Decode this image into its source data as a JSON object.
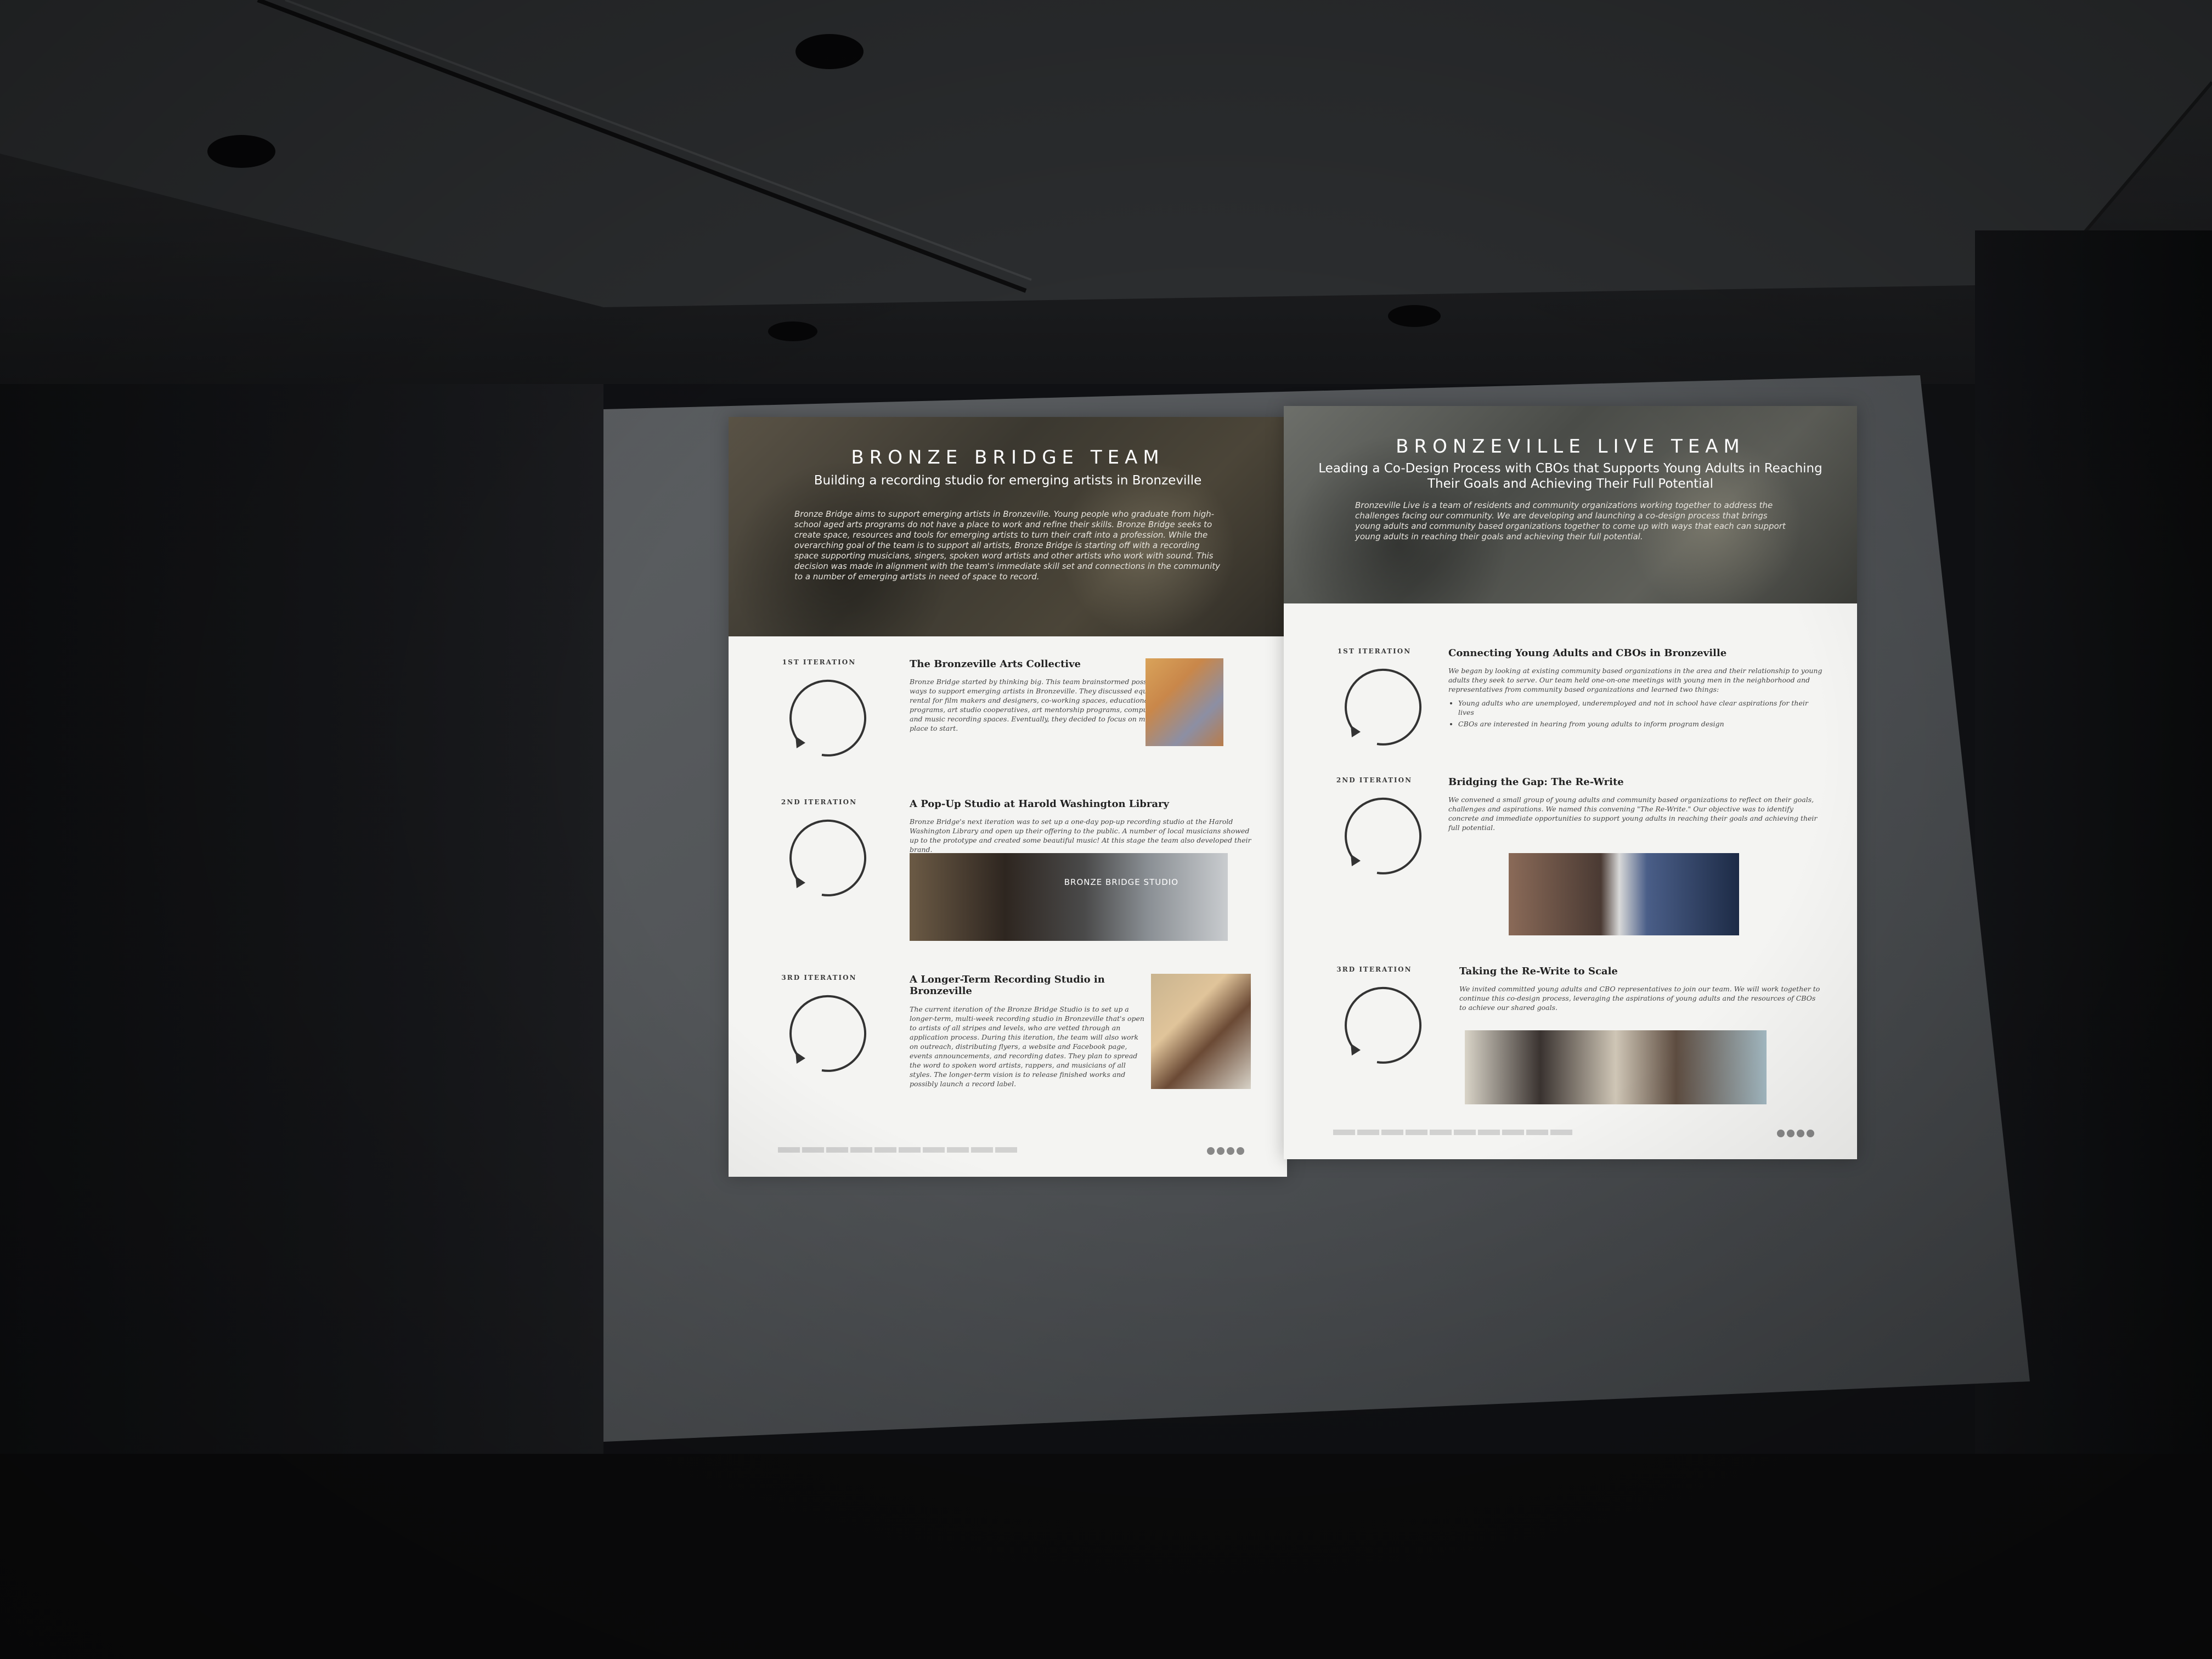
{
  "left_poster": {
    "title": "BRONZE  BRIDGE  TEAM",
    "subtitle": "Building a recording studio for emerging artists in Bronzeville",
    "intro": "Bronze Bridge aims to support emerging artists in Bronzeville. Young people who graduate from high-school aged arts programs do not have a place to work and refine their skills. Bronze Bridge seeks to create space, resources and tools for emerging artists to turn their craft into a profession. While the overarching goal of the team is to support all artists, Bronze Bridge is starting off with a recording space supporting musicians, singers, spoken word artists and other artists who work with sound. This decision was made in alignment with the team's immediate skill set and connections in the community to a number of emerging artists in need of space to record.",
    "iterations": [
      {
        "label": "1ST ITERATION",
        "title": "The Bronzeville Arts Collective",
        "body": "Bronze Bridge started by thinking big. This team brainstormed possible ways to support emerging artists in Bronzeville. They discussed equipment rental for film makers and designers, co-working spaces, educational programs, art studio cooperatives, art mentorship programs, computer labs and music recording spaces. Eventually, they decided to focus on music as a place to start."
      },
      {
        "label": "2ND ITERATION",
        "title": "A Pop-Up Studio at Harold Washington Library",
        "body": "Bronze Bridge's next iteration was to set up a one-day pop-up recording studio at the Harold Washington Library and open up their offering to the public. A number of local musicians showed up to the prototype and created some beautiful music! At this stage the team also developed their brand.",
        "image_caption": "BRONZE BRIDGE STUDIO"
      },
      {
        "label": "3RD ITERATION",
        "title": "A Longer-Term Recording Studio in Bronzeville",
        "body": "The current iteration of the Bronze Bridge Studio is to set up a longer-term, multi-week recording studio in Bronzeville that's open to artists of all stripes and levels, who are vetted through an application process. During this iteration, the team will also work on outreach, distributing flyers, a website and Facebook page, events announcements, and recording dates. They plan to spread the word to spoken word artists, rappers, and musicians of all styles. The longer-term vision is to release finished works and possibly launch a record label."
      }
    ]
  },
  "right_poster": {
    "title": "BRONZEVILLE LIVE TEAM",
    "subtitle": "Leading a Co-Design Process with CBOs that Supports Young Adults in Reaching Their Goals and Achieving Their Full Potential",
    "intro": "Bronzeville Live is a team of residents and community organizations working together to address the challenges facing our community. We are developing and launching a co-design process that brings young adults and community based organizations together to come up with ways that each can support young adults in reaching their goals and achieving their full potential.",
    "iterations": [
      {
        "label": "1ST ITERATION",
        "title": "Connecting Young Adults and CBOs in Bronzeville",
        "body": "We began by looking at existing community based organizations in the area and their relationship to young adults they seek to serve. Our team held one-on-one meetings with young men in the neighborhood and representatives from community based organizations and learned two things:",
        "bullets": [
          "Young adults who are unemployed, underemployed and not in school have clear aspirations for their lives",
          "CBOs are interested in hearing from young adults to inform program design"
        ]
      },
      {
        "label": "2ND ITERATION",
        "title": "Bridging the Gap: The Re-Write",
        "body": "We convened a small group of young adults and community based organizations to reflect on their goals, challenges and aspirations. We named this convening \"The Re-Write.\" Our objective was to identify concrete and immediate opportunities to support young adults in reaching their goals and achieving their full potential."
      },
      {
        "label": "3RD ITERATION",
        "title": "Taking the Re-Write to Scale",
        "body": "We invited committed young adults and CBO representatives to join our team. We will work together to continue this co-design process, leveraging the aspirations of young adults and the resources of CBOs to achieve our shared goals."
      }
    ]
  },
  "colors": {
    "room_dark": "#101114",
    "screen": "#55585b",
    "poster_bg": "#f4f4f2"
  }
}
